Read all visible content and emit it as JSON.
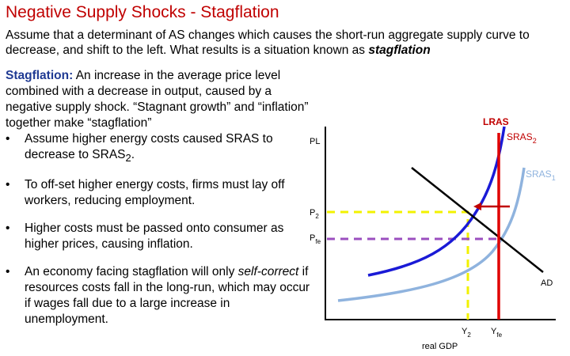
{
  "title": "Negative Supply Shocks - Stagflation",
  "intro": {
    "text": "Assume that a determinant of AS changes which causes the short-run aggregate supply curve to decrease, and shift to the left. What results is a situation known as ",
    "emphasis": "stagflation"
  },
  "definition": {
    "label": "Stagflation:",
    "text": " An increase in the average price level combined with a decrease in output, caused by a negative supply shock. “Stagnant growth” and “inflation” together make “stagflation”"
  },
  "bullets": {
    "b1_main": "Assume higher energy costs caused SRAS to decrease to SRAS",
    "b1_sub": "2",
    "b1_end": ".",
    "b2": "To off-set higher energy costs, firms must lay off workers, reducing employment.",
    "b3": "Higher costs must be passed onto consumer as higher prices, causing inflation.",
    "b4_pre": "An economy facing stagflation will only ",
    "b4_italic": "self-correct",
    "b4_post": " if resources costs fall in the long-run, which may occur if wages fall due to a large increase in unemployment."
  },
  "graph": {
    "y_axis_label": "PL",
    "x_axis_label": "real GDP",
    "p2_main": "P",
    "p2_sub": "2",
    "pfe_main": "P",
    "pfe_sub": "fe",
    "y2_main": "Y",
    "y2_sub": "2",
    "yfe_main": "Y",
    "yfe_sub": "fe",
    "lras_label": "LRAS",
    "sras2_main": "SRAS",
    "sras2_sub": "2",
    "sras1_main": "SRAS",
    "sras1_sub": "1",
    "ad_label": "AD",
    "colors": {
      "lras": "#e00000",
      "sras2": "#1a1ad6",
      "sras1": "#8fb3de",
      "ad": "#000000",
      "p2_guide": "#f2f200",
      "pfe_guide": "#9b4fbf",
      "shift_arrow": "#c00000"
    }
  }
}
